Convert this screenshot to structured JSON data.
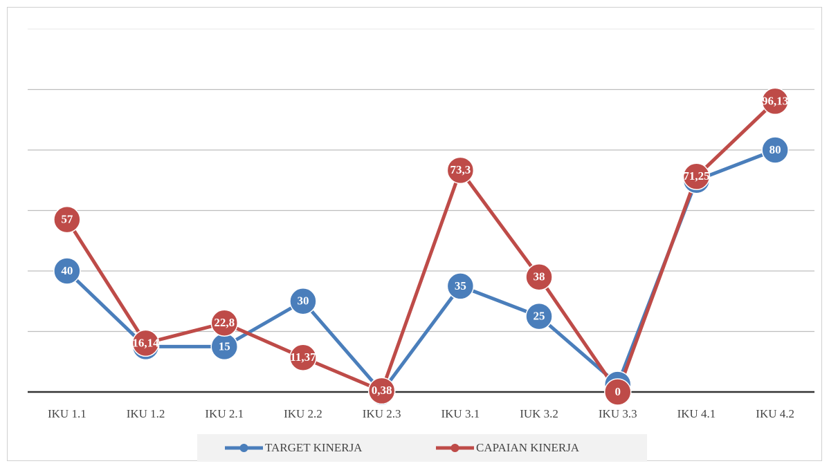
{
  "chart_data": {
    "type": "line",
    "categories": [
      "IKU 1.1",
      "IKU 1.2",
      "IKU 2.1",
      "IKU 2.2",
      "IKU 2.3",
      "IKU 3.1",
      "IUK 3.2",
      "IKU 3.3",
      "IKU 4.1",
      "IKU 4.2"
    ],
    "series": [
      {
        "name": "TARGET KINERJA",
        "color": "#4a7ebb",
        "values": [
          40,
          15,
          15,
          30,
          0,
          35,
          25,
          2.5,
          70,
          80
        ],
        "value_labels": [
          "40",
          "15",
          "15",
          "30",
          "0",
          "35",
          "25",
          "2,5",
          "70",
          "80"
        ]
      },
      {
        "name": "CAPAIAN KINERJA",
        "color": "#be4b48",
        "values": [
          57,
          16.14,
          22.8,
          11.37,
          0.38,
          73.3,
          38,
          0,
          71.25,
          96.13
        ],
        "value_labels": [
          "57",
          "16,14",
          "22,8",
          "11,37",
          "0,38",
          "73,3",
          "38",
          "0",
          "71,25",
          "96,13"
        ]
      }
    ],
    "ylim": [
      0,
      120
    ],
    "yticks": [
      0,
      20,
      40,
      60,
      80,
      100,
      120
    ],
    "grid": true,
    "legend": "bottom"
  }
}
